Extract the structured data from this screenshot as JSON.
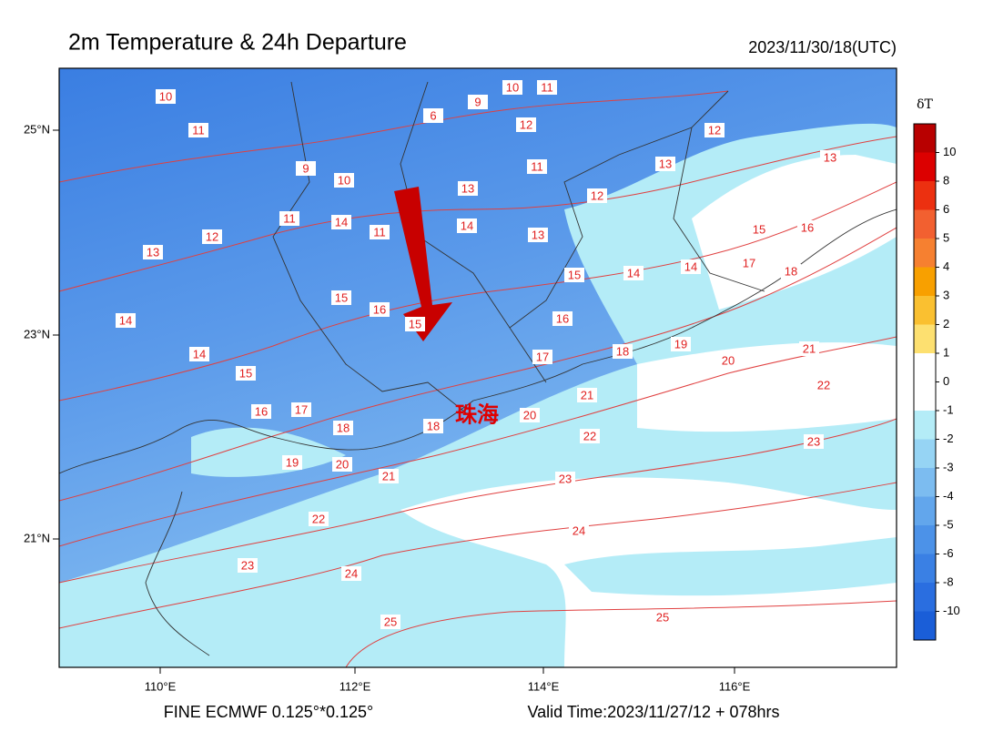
{
  "header": {
    "title": "2m Temperature & 24h Departure",
    "date": "2023/11/30/18(UTC)"
  },
  "map": {
    "lat_labels": [
      "25°N",
      "23°N",
      "21°N"
    ],
    "lon_labels": [
      "110°E",
      "112°E",
      "114°E",
      "116°E"
    ],
    "city": "珠海",
    "contour_labels": [
      10,
      11,
      9,
      10,
      11,
      6,
      12,
      12,
      9,
      10,
      11,
      13,
      13,
      13,
      12,
      11,
      14,
      12,
      11,
      14,
      13,
      16,
      15,
      13,
      14,
      17,
      18,
      15,
      14,
      15,
      16,
      16,
      14,
      15,
      14,
      17,
      18,
      19,
      21,
      20,
      15,
      22,
      16,
      17,
      21,
      18,
      18,
      20,
      22,
      23,
      19,
      20,
      21,
      23,
      22,
      24,
      23,
      24,
      25,
      25
    ]
  },
  "colorbar": {
    "title": "δT",
    "levels": [
      10,
      8,
      6,
      5,
      4,
      3,
      2,
      1,
      0,
      -1,
      -2,
      -3,
      -4,
      -5,
      -6,
      -8,
      -10
    ],
    "colors": [
      "#b80000",
      "#dc0000",
      "#ec3010",
      "#f26030",
      "#f68030",
      "#f8a000",
      "#fac030",
      "#fde070",
      "#ffffff",
      "#ffffff",
      "#b4ecf7",
      "#96d4f4",
      "#7cbcf0",
      "#62a6ec",
      "#4c92e8",
      "#3a80e4",
      "#2a6ee0",
      "#1a5ed8"
    ]
  },
  "footer": {
    "left": "FINE ECMWF 0.125°*0.125°",
    "right": "Valid Time:2023/11/27/12 + 078hrs"
  }
}
